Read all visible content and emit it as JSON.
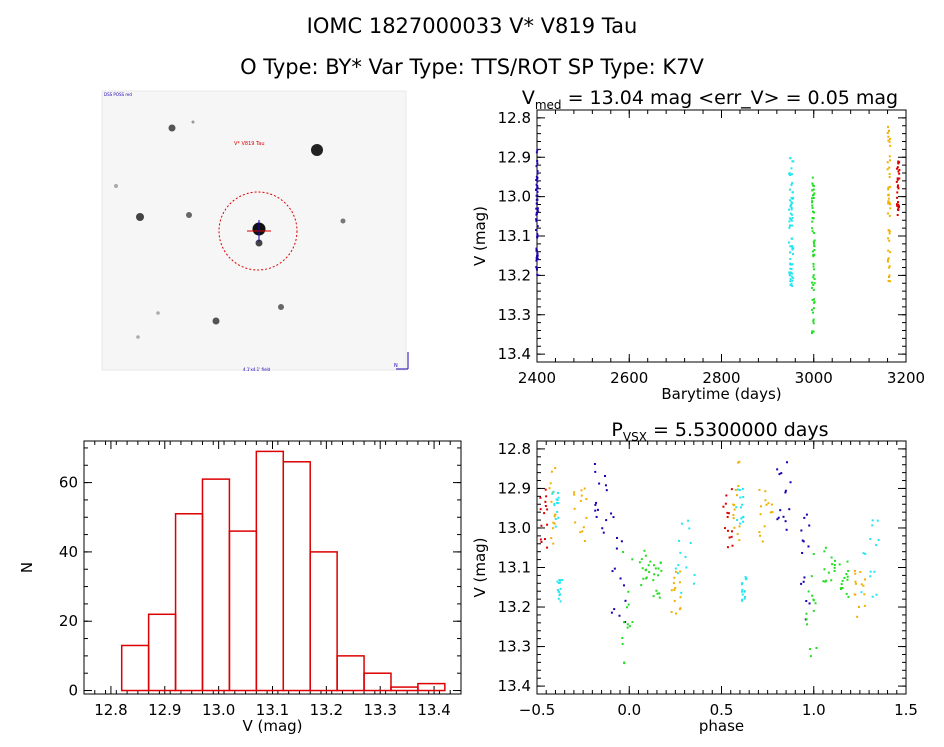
{
  "header": {
    "line1": "IOMC 1827000033    V* V819 Tau",
    "line2": "O Type: BY*  Var Type: TTS/ROT  SP Type: K7V"
  },
  "thumbnail": {
    "target_label": "V* V819 Tau",
    "corner_label": "DSS POSS red",
    "bottom_label": "4.1'x4.1' field",
    "left_bottom_label": "N"
  },
  "colors": {
    "red": "#dd0000",
    "orange": "#f0b000",
    "blue": "#1a00b0",
    "green": "#22dd22",
    "cyan": "#22e6f0",
    "hist": "#dd0000"
  },
  "chart_data": [
    {
      "id": "lightcurve",
      "type": "scatter",
      "title_main": "V",
      "title_sub": "med",
      "title_rest": " = 13.04 mag <err_V> = 0.05 mag",
      "xlabel": "Barytime (days)",
      "ylabel": "V (mag)",
      "xlim": [
        2400,
        3200
      ],
      "ylim": [
        13.42,
        12.78
      ],
      "xticks": [
        2400,
        2600,
        2800,
        3000,
        3200
      ],
      "xticklabels": [
        "2400",
        "2600",
        "2800",
        "3000",
        "3200"
      ],
      "yticks": [
        12.8,
        12.9,
        13.0,
        13.1,
        13.2,
        13.3,
        13.4
      ],
      "yticklabels": [
        "12.8",
        "12.9",
        "13.0",
        "13.1",
        "13.2",
        "13.3",
        "13.4"
      ],
      "series": [
        {
          "name": "season1",
          "color": "blue",
          "x_range": [
            2398,
            2402
          ],
          "y_range": [
            12.88,
            13.2
          ],
          "points": 60
        },
        {
          "name": "season2",
          "color": "cyan",
          "x_range": [
            2946,
            2956
          ],
          "y_range": [
            12.9,
            13.23
          ],
          "points": 70
        },
        {
          "name": "season3",
          "color": "green",
          "x_range": [
            2996,
            3002
          ],
          "y_range": [
            12.95,
            13.35
          ],
          "points": 60
        },
        {
          "name": "season4",
          "color": "orange",
          "x_range": [
            3160,
            3166
          ],
          "y_range": [
            12.82,
            13.23
          ],
          "points": 50
        },
        {
          "name": "season5",
          "color": "red",
          "x_range": [
            3180,
            3186
          ],
          "y_range": [
            12.91,
            13.05
          ],
          "points": 30
        }
      ]
    },
    {
      "id": "histogram",
      "type": "bar",
      "xlabel": "V (mag)",
      "ylabel": "N",
      "xlim": [
        12.75,
        13.45
      ],
      "ylim": [
        -1,
        72
      ],
      "xticks": [
        12.8,
        12.9,
        13.0,
        13.1,
        13.2,
        13.3,
        13.4
      ],
      "xticklabels": [
        "12.8",
        "12.9",
        "13.0",
        "13.1",
        "13.2",
        "13.3",
        "13.4"
      ],
      "yticks": [
        0,
        20,
        40,
        60
      ],
      "yticklabels": [
        "0",
        "20",
        "40",
        "60"
      ],
      "bin_edges": [
        12.82,
        12.87,
        12.92,
        12.97,
        13.02,
        13.07,
        13.12,
        13.17,
        13.22,
        13.27,
        13.32,
        13.37
      ],
      "values": [
        13,
        22,
        51,
        61,
        46,
        69,
        66,
        40,
        10,
        5,
        1,
        2
      ]
    },
    {
      "id": "phased",
      "type": "scatter",
      "title_main": "P",
      "title_sub": "VSX",
      "title_rest": " = 5.5300000 days",
      "xlabel": "phase",
      "ylabel": "V (mag)",
      "xlim": [
        -0.5,
        1.5
      ],
      "ylim": [
        13.42,
        12.78
      ],
      "xticks": [
        -0.5,
        0.0,
        0.5,
        1.0,
        1.5
      ],
      "xticklabels": [
        "−0.5",
        "0.0",
        "0.5",
        "1.0",
        "1.5"
      ],
      "yticks": [
        12.8,
        12.9,
        13.0,
        13.1,
        13.2,
        13.3,
        13.4
      ],
      "yticklabels": [
        "12.8",
        "12.9",
        "13.0",
        "13.1",
        "13.2",
        "13.3",
        "13.4"
      ],
      "groups": [
        {
          "color": "red",
          "phase_range": [
            -0.49,
            -0.44
          ],
          "y_range": [
            12.9,
            13.05
          ]
        },
        {
          "color": "orange",
          "phase_range": [
            -0.44,
            -0.4
          ],
          "y_range": [
            12.82,
            13.05
          ]
        },
        {
          "color": "cyan",
          "phase_range": [
            -0.42,
            -0.38
          ],
          "y_range": [
            12.9,
            13.0
          ]
        },
        {
          "color": "cyan",
          "phase_range": [
            -0.39,
            -0.36
          ],
          "y_range": [
            13.12,
            13.19
          ]
        },
        {
          "color": "orange",
          "phase_range": [
            -0.3,
            -0.22
          ],
          "y_range": [
            12.9,
            13.05
          ]
        },
        {
          "color": "blue",
          "phase_range": [
            -0.2,
            -0.12
          ],
          "y_range": [
            12.83,
            13.02
          ]
        },
        {
          "color": "blue",
          "phase_range": [
            -0.1,
            -0.02
          ],
          "y_range": [
            12.95,
            13.25
          ]
        },
        {
          "color": "green",
          "phase_range": [
            -0.04,
            0.02
          ],
          "y_range": [
            13.05,
            13.35
          ]
        },
        {
          "color": "green",
          "phase_range": [
            0.05,
            0.12
          ],
          "y_range": [
            13.05,
            13.15
          ]
        },
        {
          "color": "green",
          "phase_range": [
            0.13,
            0.19
          ],
          "y_range": [
            13.08,
            13.18
          ]
        },
        {
          "color": "orange",
          "phase_range": [
            0.22,
            0.28
          ],
          "y_range": [
            13.1,
            13.23
          ]
        },
        {
          "color": "cyan",
          "phase_range": [
            0.25,
            0.36
          ],
          "y_range": [
            12.98,
            13.18
          ]
        }
      ]
    }
  ]
}
